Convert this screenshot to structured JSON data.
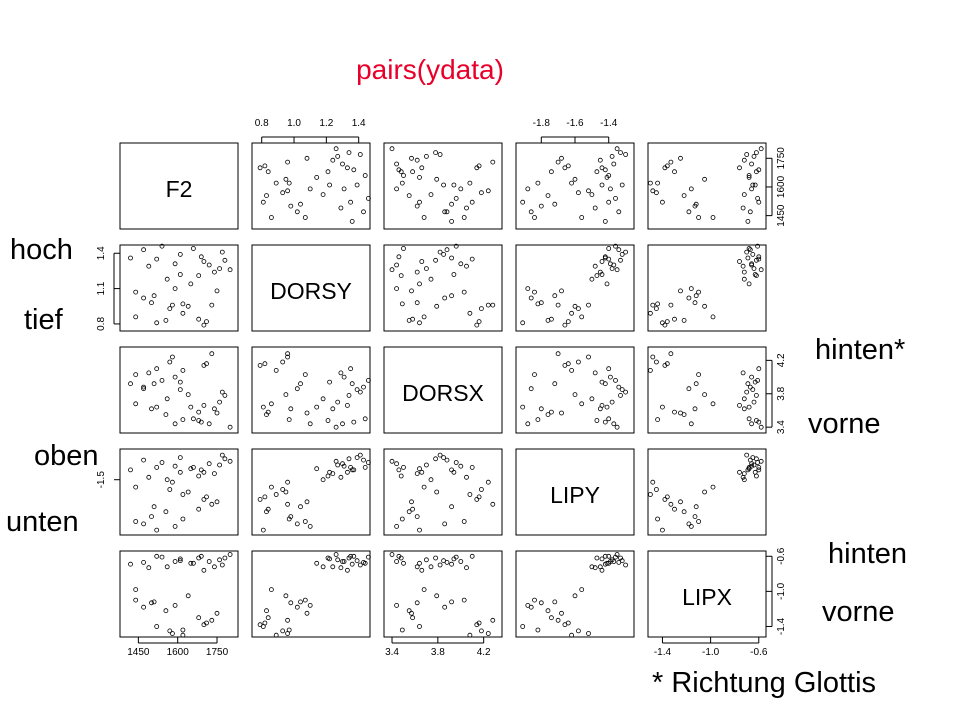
{
  "chart_data": {
    "type": "scatter",
    "title": "pairs(ydata)",
    "variables": [
      "F2",
      "DORSY",
      "DORSX",
      "LIPY",
      "LIPX"
    ],
    "ranges": {
      "F2": [
        1380,
        1830
      ],
      "DORSY": [
        0.74,
        1.47
      ],
      "DORSX": [
        3.33,
        4.36
      ],
      "LIPY": [
        -1.95,
        -1.25
      ],
      "LIPX": [
        -1.52,
        -0.54
      ]
    },
    "ticks": {
      "F2": [
        "1450",
        "1600",
        "1750"
      ],
      "DORSY": [
        "0.8",
        "1.0",
        "1.2",
        "1.4"
      ],
      "DORSY_left": [
        "0.8",
        "1.1",
        "1.4"
      ],
      "DORSX": [
        "3.4",
        "3.8",
        "4.2"
      ],
      "LIPY": [
        "-1.8",
        "-1.6",
        "-1.4"
      ],
      "LIPY_left": [
        "-1.5"
      ],
      "LIPX": [
        "-1.4",
        "-1.0",
        "-0.6"
      ]
    },
    "points": [
      {
        "F2": 1660,
        "DORSY": 1.44,
        "DORSX": 3.5,
        "LIPY": -1.4,
        "LIPX": -0.68
      },
      {
        "F2": 1690,
        "DORSY": 1.37,
        "DORSX": 3.46,
        "LIPY": -1.42,
        "LIPX": -0.6
      },
      {
        "F2": 1720,
        "DORSY": 1.3,
        "DORSX": 3.44,
        "LIPY": -1.37,
        "LIPX": -0.66
      },
      {
        "F2": 1740,
        "DORSY": 1.24,
        "DORSX": 3.62,
        "LIPY": -1.45,
        "LIPX": -0.72
      },
      {
        "F2": 1760,
        "DORSY": 1.27,
        "DORSX": 3.7,
        "LIPY": -1.38,
        "LIPX": -0.64
      },
      {
        "F2": 1780,
        "DORSY": 1.34,
        "DORSX": 3.78,
        "LIPY": -1.33,
        "LIPX": -0.62
      },
      {
        "F2": 1800,
        "DORSY": 1.26,
        "DORSX": 3.4,
        "LIPY": -1.35,
        "LIPX": -0.58
      },
      {
        "F2": 1770,
        "DORSY": 1.41,
        "DORSX": 3.82,
        "LIPY": -1.3,
        "LIPX": -0.7
      },
      {
        "F2": 1700,
        "DORSY": 1.33,
        "DORSX": 3.66,
        "LIPY": -1.44,
        "LIPX": -0.76
      },
      {
        "F2": 1680,
        "DORSY": 1.21,
        "DORSX": 3.48,
        "LIPY": -1.47,
        "LIPX": -0.62
      },
      {
        "F2": 1650,
        "DORSY": 1.14,
        "DORSX": 3.64,
        "LIPY": -1.41,
        "LIPX": -0.68
      },
      {
        "F2": 1610,
        "DORSY": 1.39,
        "DORSX": 3.85,
        "LIPY": -1.32,
        "LIPX": -0.65
      },
      {
        "F2": 1560,
        "DORSY": 1.18,
        "DORSX": 3.74,
        "LIPY": -1.5,
        "LIPX": -0.72
      },
      {
        "F2": 1540,
        "DORSY": 1.46,
        "DORSX": 3.96,
        "LIPY": -1.36,
        "LIPX": -0.61
      },
      {
        "F2": 1590,
        "DORSY": 1.31,
        "DORSX": 4.0,
        "LIPY": -1.39,
        "LIPX": -0.66
      },
      {
        "F2": 1610,
        "DORSY": 1.22,
        "DORSX": 3.94,
        "LIPY": -1.44,
        "LIPX": -0.63
      },
      {
        "F2": 1470,
        "DORSY": 1.43,
        "DORSX": 3.88,
        "LIPY": -1.34,
        "LIPX": -0.67
      },
      {
        "F2": 1420,
        "DORSY": 1.36,
        "DORSX": 3.92,
        "LIPY": -1.42,
        "LIPX": -0.69
      },
      {
        "F2": 1490,
        "DORSY": 1.29,
        "DORSX": 4.05,
        "LIPY": -1.48,
        "LIPX": -0.73
      },
      {
        "F2": 1520,
        "DORSY": 1.35,
        "DORSX": 4.1,
        "LIPY": -1.4,
        "LIPX": -0.6
      },
      {
        "F2": 1580,
        "DORSY": 0.96,
        "DORSX": 4.24,
        "LIPY": -1.52,
        "LIPX": -1.48
      },
      {
        "F2": 1570,
        "DORSY": 0.93,
        "DORSX": 4.18,
        "LIPY": -1.58,
        "LIPX": -1.45
      },
      {
        "F2": 1620,
        "DORSY": 0.89,
        "DORSX": 4.08,
        "LIPY": -1.62,
        "LIPX": -1.5
      },
      {
        "F2": 1710,
        "DORSY": 0.82,
        "DORSX": 4.16,
        "LIPY": -1.64,
        "LIPX": -1.36
      },
      {
        "F2": 1700,
        "DORSY": 0.79,
        "DORSX": 4.14,
        "LIPY": -1.66,
        "LIPX": -1.38
      },
      {
        "F2": 1730,
        "DORSY": 0.96,
        "DORSX": 4.28,
        "LIPY": -1.7,
        "LIPX": -1.33
      },
      {
        "F2": 1510,
        "DORSY": 1.04,
        "DORSX": 3.92,
        "LIPY": -1.72,
        "LIPX": -1.12
      },
      {
        "F2": 1440,
        "DORSY": 1.07,
        "DORSX": 4.03,
        "LIPY": -1.84,
        "LIPX": -1.1
      },
      {
        "F2": 1470,
        "DORSY": 1.02,
        "DORSX": 3.86,
        "LIPY": -1.86,
        "LIPX": -1.18
      },
      {
        "F2": 1500,
        "DORSY": 0.98,
        "DORSX": 3.62,
        "LIPY": -1.8,
        "LIPX": -1.13
      },
      {
        "F2": 1555,
        "DORSY": 0.83,
        "DORSX": 3.55,
        "LIPY": -1.76,
        "LIPX": -1.22
      },
      {
        "F2": 1590,
        "DORSY": 1.1,
        "DORSX": 3.44,
        "LIPY": -1.88,
        "LIPX": -1.16
      },
      {
        "F2": 1520,
        "DORSY": 0.81,
        "DORSX": 3.64,
        "LIPY": -1.91,
        "LIPX": -1.4
      },
      {
        "F2": 1620,
        "DORSY": 0.97,
        "DORSX": 3.49,
        "LIPY": -1.82,
        "LIPX": -1.44
      },
      {
        "F2": 1680,
        "DORSY": 0.84,
        "DORSX": 3.58,
        "LIPY": -1.74,
        "LIPX": -1.3
      },
      {
        "F2": 1750,
        "DORSY": 1.08,
        "DORSX": 3.57,
        "LIPY": -1.68,
        "LIPX": -1.25
      },
      {
        "F2": 1640,
        "DORSY": 0.95,
        "DORSX": 3.79,
        "LIPY": -1.6,
        "LIPX": -1.05
      },
      {
        "F2": 1440,
        "DORSY": 0.86,
        "DORSX": 3.68,
        "LIPY": -1.56,
        "LIPX": -0.98
      }
    ]
  },
  "annotations": {
    "hoch": "hoch",
    "tief": "tief",
    "oben": "oben",
    "unten": "unten",
    "hinten_star": "hinten*",
    "vorne_1": "vorne",
    "hinten": "hinten",
    "vorne_2": "vorne",
    "footnote": "* Richtung Glottis"
  }
}
